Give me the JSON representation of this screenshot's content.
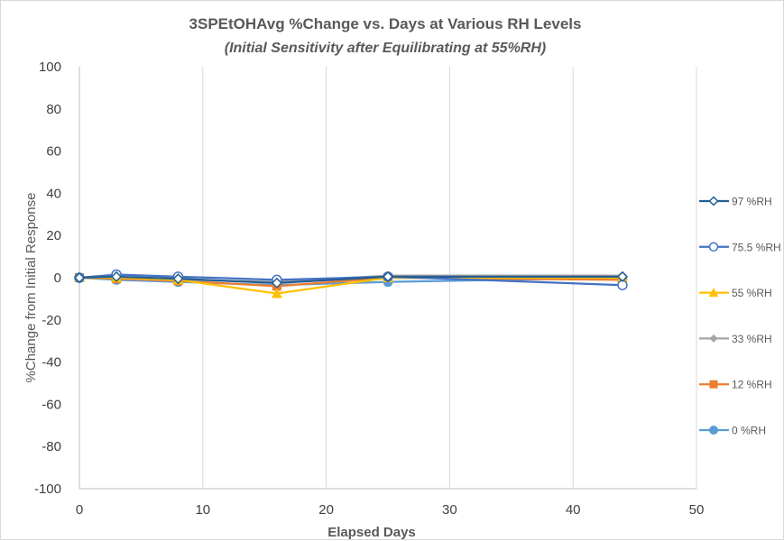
{
  "chart_data": {
    "type": "line",
    "title": "3SPEtOHAvg %Change vs. Days at Various RH Levels",
    "subtitle": "(Initial Sensitivity after Equilibrating at 55%RH)",
    "xlabel": "Elapsed Days",
    "ylabel": "%Change from Initial Response",
    "xlim": [
      0,
      50
    ],
    "ylim": [
      -100,
      100
    ],
    "xticks": [
      0,
      10,
      20,
      30,
      40,
      50
    ],
    "yticks": [
      -100,
      -80,
      -60,
      -40,
      -20,
      0,
      20,
      40,
      60,
      80,
      100
    ],
    "grid": "vertical",
    "legend_position": "right",
    "x": [
      0,
      3,
      8,
      16,
      25,
      44
    ],
    "series": [
      {
        "name": "0 %RH",
        "color": "#5b9bd5",
        "marker": "circle-filled",
        "values": [
          0,
          -1,
          -2,
          -3.5,
          -2,
          0
        ]
      },
      {
        "name": "12 %RH",
        "color": "#ed7d31",
        "marker": "square",
        "values": [
          0,
          -0.5,
          -1.5,
          -4,
          0,
          -1
        ]
      },
      {
        "name": "33 %RH",
        "color": "#a5a5a5",
        "marker": "diamond-filled",
        "values": [
          0,
          0,
          -1,
          -2,
          1,
          1
        ]
      },
      {
        "name": "55 %RH",
        "color": "#ffc000",
        "marker": "triangle",
        "values": [
          0,
          0,
          -1,
          -7.5,
          0,
          0
        ]
      },
      {
        "name": "75.5 %RH",
        "color": "#4472c4",
        "marker": "circle-open",
        "values": [
          0,
          1.5,
          0.5,
          -1,
          0.5,
          -3.5
        ]
      },
      {
        "name": "97 %RH",
        "color": "#255e91",
        "marker": "diamond-open",
        "values": [
          0,
          0.5,
          -0.5,
          -2.5,
          0.5,
          0.5
        ]
      }
    ],
    "legend_order": [
      "97 %RH",
      "75.5 %RH",
      "55 %RH",
      "33 %RH",
      "12 %RH",
      "0 %RH"
    ]
  }
}
